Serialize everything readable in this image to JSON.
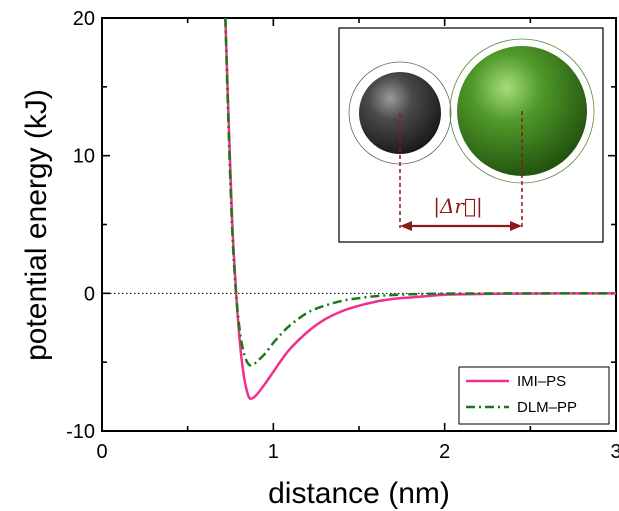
{
  "chart_data": {
    "type": "line",
    "xlabel": "distance (nm)",
    "ylabel": "potential energy (kJ)",
    "xlim": [
      0,
      3
    ],
    "ylim": [
      -10,
      20
    ],
    "x_ticks": [
      0,
      1,
      2,
      3
    ],
    "x_tick_labels": [
      "0",
      "1",
      "2",
      "3"
    ],
    "y_ticks": [
      -10,
      0,
      10,
      20
    ],
    "y_tick_labels": [
      "-10",
      "0",
      "10",
      "20"
    ],
    "grid": false,
    "zero_reference_line": true,
    "legend": {
      "placement": "bottom-right"
    },
    "series": [
      {
        "name": "IMI–PS",
        "color": "#f0308a",
        "style": "solid",
        "x": [
          0.72,
          0.74,
          0.76,
          0.78,
          0.8,
          0.82,
          0.84,
          0.86,
          0.88,
          0.9,
          0.95,
          1.0,
          1.05,
          1.1,
          1.2,
          1.3,
          1.4,
          1.5,
          1.6,
          1.7,
          1.8,
          1.9,
          2.0,
          2.2,
          2.4,
          2.6,
          2.8,
          3.0
        ],
        "y": [
          20.0,
          12.3,
          5.2,
          0.6,
          -2.9,
          -5.3,
          -6.8,
          -7.6,
          -7.6,
          -7.4,
          -6.6,
          -5.7,
          -4.8,
          -4.0,
          -2.8,
          -1.9,
          -1.3,
          -0.9,
          -0.6,
          -0.4,
          -0.3,
          -0.2,
          -0.1,
          -0.05,
          -0.02,
          -0.01,
          0.0,
          0.0
        ]
      },
      {
        "name": "DLM–PP",
        "color": "#1a7a1a",
        "style": "dashdot",
        "x": [
          0.72,
          0.74,
          0.76,
          0.78,
          0.8,
          0.82,
          0.84,
          0.86,
          0.88,
          0.9,
          0.95,
          1.0,
          1.05,
          1.1,
          1.2,
          1.3,
          1.4,
          1.5,
          1.6,
          1.7,
          1.8,
          1.9,
          2.0,
          2.2,
          2.4,
          2.6,
          2.8,
          3.0
        ],
        "y": [
          20.0,
          11.5,
          4.6,
          0.4,
          -2.3,
          -3.9,
          -4.8,
          -5.2,
          -5.2,
          -5.0,
          -4.4,
          -3.6,
          -2.9,
          -2.3,
          -1.4,
          -0.9,
          -0.55,
          -0.35,
          -0.2,
          -0.12,
          -0.07,
          -0.04,
          -0.02,
          -0.01,
          0.0,
          0.0,
          0.0,
          0.0
        ]
      }
    ],
    "inset": {
      "label": "|Δr⃗|",
      "small_sphere_color": "#3a3a3a",
      "large_sphere_color": "#4f9a2a",
      "arrow_color": "#8b1a1a"
    }
  }
}
